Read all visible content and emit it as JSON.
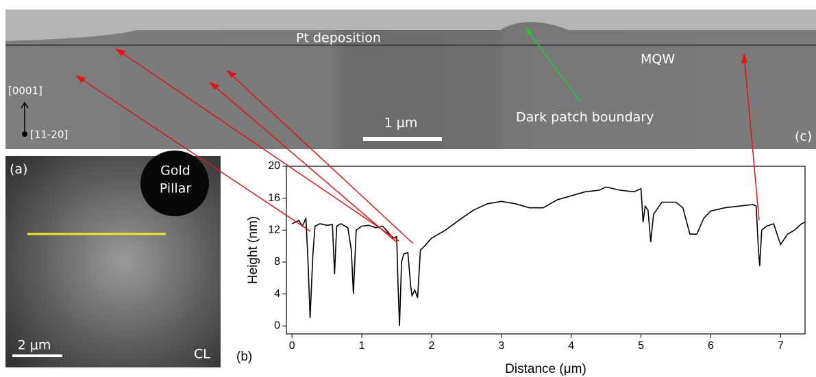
{
  "panel_c": {
    "pt_label": "Pt deposition",
    "mqw_label": "MQW",
    "boundary_label": "Dark patch boundary",
    "scale_bar": "1 μm",
    "panel_label": "(c)",
    "axis_up": "[0001]",
    "axis_out": "[11-20]"
  },
  "panel_a": {
    "panel_label": "(a)",
    "pillar_line1": "Gold",
    "pillar_line2": "Pillar",
    "scale_bar": "2 μm",
    "mode_label": "CL"
  },
  "chart_data": {
    "type": "line",
    "panel_label": "(b)",
    "x_label": "Distance (μm)",
    "y_label": "Height (nm)",
    "color": "#000000",
    "x": [
      0,
      0.1,
      0.15,
      0.2,
      0.23,
      0.26,
      0.3,
      0.33,
      0.4,
      0.5,
      0.58,
      0.61,
      0.64,
      0.7,
      0.8,
      0.85,
      0.88,
      0.92,
      1.0,
      1.1,
      1.2,
      1.3,
      1.4,
      1.45,
      1.5,
      1.52,
      1.54,
      1.57,
      1.6,
      1.66,
      1.7,
      1.72,
      1.76,
      1.8,
      1.84,
      1.9,
      2.0,
      2.2,
      2.4,
      2.6,
      2.8,
      3.0,
      3.2,
      3.4,
      3.6,
      3.8,
      4.0,
      4.2,
      4.4,
      4.5,
      4.7,
      4.9,
      5.0,
      5.03,
      5.06,
      5.1,
      5.14,
      5.18,
      5.3,
      5.5,
      5.6,
      5.7,
      5.8,
      5.9,
      6.0,
      6.2,
      6.4,
      6.6,
      6.65,
      6.68,
      6.7,
      6.73,
      6.8,
      6.9,
      6.95,
      7.0,
      7.1,
      7.2,
      7.3,
      7.35
    ],
    "values": [
      12.8,
      13.2,
      12.5,
      13.5,
      8,
      1,
      9,
      12.5,
      12.8,
      12.6,
      12.7,
      6.5,
      12.5,
      12.8,
      12.3,
      9.5,
      4,
      12,
      12.5,
      12.6,
      12.3,
      12.5,
      11.5,
      11,
      11.2,
      5,
      0,
      8,
      9,
      9.2,
      5,
      3.8,
      4.5,
      3.5,
      9.5,
      10,
      11,
      12,
      13.3,
      14.5,
      15.3,
      15.6,
      15.3,
      14.8,
      14.8,
      15.8,
      16.3,
      16.8,
      17,
      17.4,
      17,
      16.8,
      17.2,
      13,
      15,
      14.5,
      10.5,
      14,
      15.5,
      15.5,
      14.8,
      11.5,
      11.5,
      13.5,
      14.4,
      14.8,
      15,
      15.2,
      15,
      10,
      7.5,
      12,
      12.5,
      12.8,
      11.5,
      10.2,
      11.5,
      12,
      12.8,
      13
    ],
    "xlim": [
      -0.08,
      7.35
    ],
    "ylim": [
      -1,
      20
    ],
    "xticks": [
      0,
      1,
      2,
      3,
      4,
      5,
      6,
      7
    ],
    "yticks": [
      0,
      4,
      8,
      12,
      16,
      20
    ]
  }
}
